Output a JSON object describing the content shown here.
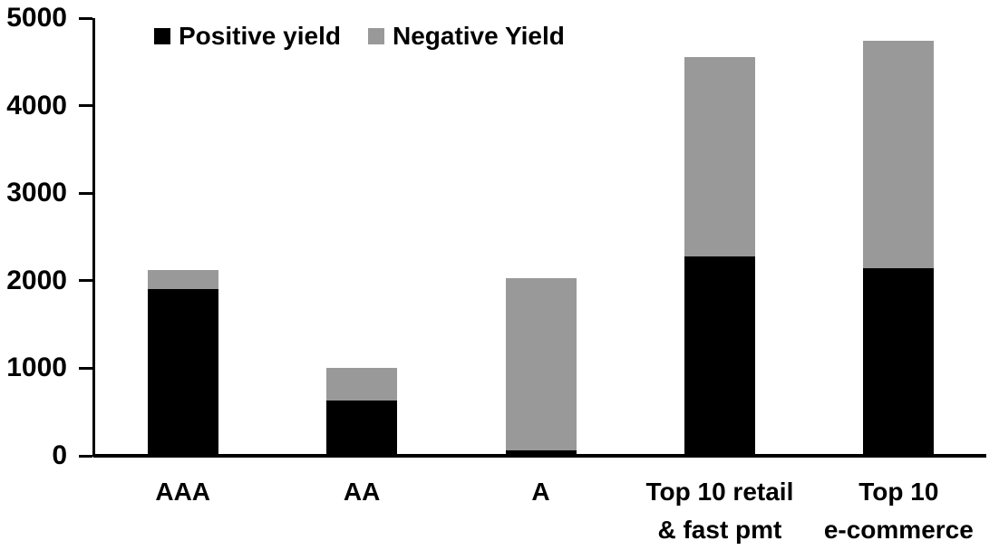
{
  "chart_data": {
    "type": "bar",
    "stacked": true,
    "title": "",
    "xlabel": "",
    "ylabel": "",
    "categories": [
      "AAA",
      "AA",
      "A",
      "Top 10 retail\n& fast pmt",
      "Top 10\ne-commerce"
    ],
    "series": [
      {
        "name": "Positive yield",
        "color": "#000000",
        "values": [
          1900,
          630,
          60,
          2280,
          2140
        ]
      },
      {
        "name": "Negative Yield",
        "color": "#999999",
        "values": [
          220,
          370,
          1970,
          2270,
          2600
        ]
      }
    ],
    "totals": [
      2120,
      1000,
      2030,
      4550,
      4740
    ],
    "ylim": [
      0,
      5000
    ],
    "yticks": [
      0,
      1000,
      2000,
      3000,
      4000,
      5000
    ],
    "legend_position": "top",
    "grid": false,
    "background_color": "#ffffff",
    "axis_color": "#000000"
  }
}
